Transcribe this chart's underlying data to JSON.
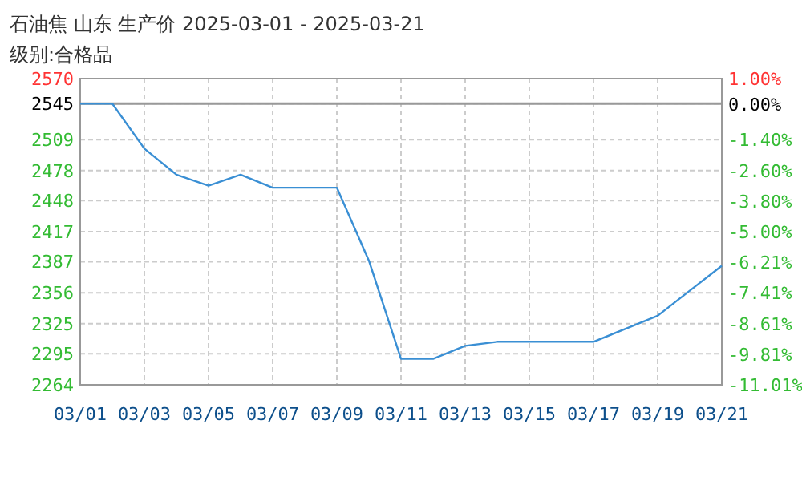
{
  "chart_data": {
    "type": "line",
    "title": "石油焦 山东 生产价 2025-03-01 - 2025-03-21",
    "subtitle": "级别:合格品",
    "x": [
      "2025-03-01",
      "2025-03-02",
      "2025-03-03",
      "2025-03-04",
      "2025-03-05",
      "2025-03-06",
      "2025-03-07",
      "2025-03-08",
      "2025-03-09",
      "2025-03-10",
      "2025-03-11",
      "2025-03-12",
      "2025-03-13",
      "2025-03-14",
      "2025-03-15",
      "2025-03-16",
      "2025-03-17",
      "2025-03-18",
      "2025-03-19",
      "2025-03-20",
      "2025-03-21"
    ],
    "series": [
      {
        "color": "#3a8fd4",
        "values": [
          2545,
          2545,
          2500,
          2474,
          2463,
          2474,
          2461,
          2461,
          2461,
          2388,
          2290,
          2290,
          2303,
          2307,
          2307,
          2307,
          2307,
          2320,
          2333,
          2358,
          2383
        ]
      }
    ],
    "xlim": [
      "2025-03-01",
      "2025-03-21"
    ],
    "xticks": [
      {
        "value": "2025-03-01",
        "label": "03/01"
      },
      {
        "value": "2025-03-03",
        "label": "03/03"
      },
      {
        "value": "2025-03-05",
        "label": "03/05"
      },
      {
        "value": "2025-03-07",
        "label": "03/07"
      },
      {
        "value": "2025-03-09",
        "label": "03/09"
      },
      {
        "value": "2025-03-11",
        "label": "03/11"
      },
      {
        "value": "2025-03-13",
        "label": "03/13"
      },
      {
        "value": "2025-03-15",
        "label": "03/15"
      },
      {
        "value": "2025-03-17",
        "label": "03/17"
      },
      {
        "value": "2025-03-19",
        "label": "03/19"
      },
      {
        "value": "2025-03-21",
        "label": "03/21"
      }
    ],
    "ylim": [
      2264,
      2570
    ],
    "yticks": [
      2570,
      2545,
      2509,
      2478,
      2448,
      2417,
      2387,
      2356,
      2325,
      2295,
      2264
    ],
    "y2lim": [
      -11.01,
      1.0
    ],
    "y2ticks": [
      {
        "value": 1.0,
        "label": "1.00%"
      },
      {
        "value": 0.0,
        "label": "0.00%"
      },
      {
        "value": -1.4,
        "label": "-1.40%"
      },
      {
        "value": -2.6,
        "label": "-2.60%"
      },
      {
        "value": -3.8,
        "label": "-3.80%"
      },
      {
        "value": -5.0,
        "label": "-5.00%"
      },
      {
        "value": -6.21,
        "label": "-6.21%"
      },
      {
        "value": -7.41,
        "label": "-7.41%"
      },
      {
        "value": -8.61,
        "label": "-8.61%"
      },
      {
        "value": -9.81,
        "label": "-9.81%"
      },
      {
        "value": -11.01,
        "label": "-11.01%"
      }
    ],
    "ref_lines": [
      {
        "axis": "y",
        "value": 2545,
        "color": "#999999"
      }
    ],
    "grid": true
  }
}
